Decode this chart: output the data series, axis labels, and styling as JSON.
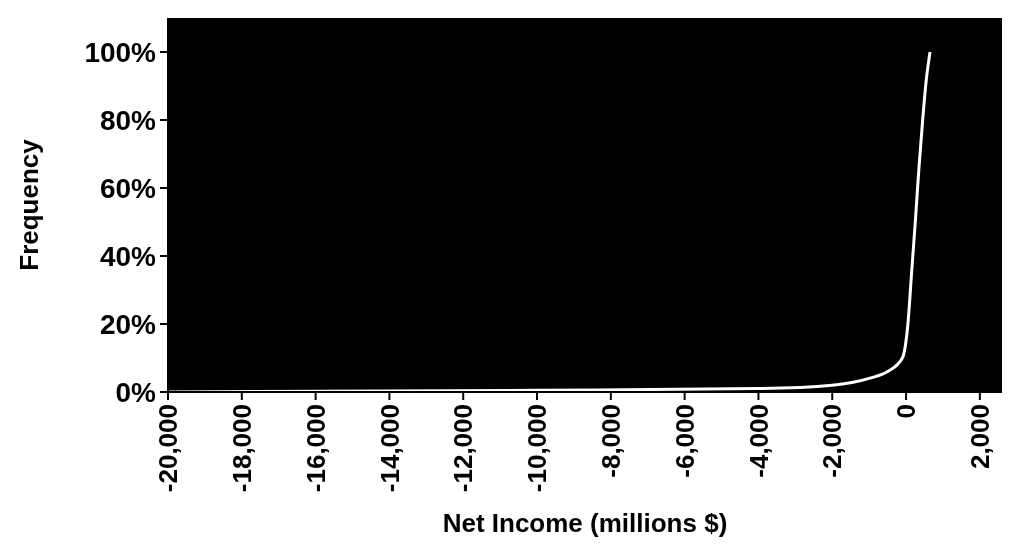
{
  "chart_data": {
    "type": "line",
    "xlabel": "Net Income (millions $)",
    "ylabel": "Frequency",
    "x": [
      -20000,
      -10000,
      -4000,
      -2000,
      -1000,
      -500,
      -100,
      50,
      150,
      250,
      350,
      450,
      550,
      650
    ],
    "series": [
      {
        "color": "#ffffff",
        "values": [
          0,
          0.5,
          1,
          2,
          4,
          6,
          10,
          20,
          35,
          50,
          66,
          80,
          92,
          100
        ]
      }
    ],
    "xlim": [
      -20000,
      2600
    ],
    "ylim": [
      0,
      110
    ],
    "xticks": [
      {
        "value": -20000,
        "label": "-20,000"
      },
      {
        "value": -18000,
        "label": "-18,000"
      },
      {
        "value": -16000,
        "label": "-16,000"
      },
      {
        "value": -14000,
        "label": "-14,000"
      },
      {
        "value": -12000,
        "label": "-12,000"
      },
      {
        "value": -10000,
        "label": "-10,000"
      },
      {
        "value": -8000,
        "label": "-8,000"
      },
      {
        "value": -6000,
        "label": "-6,000"
      },
      {
        "value": -4000,
        "label": "-4,000"
      },
      {
        "value": -2000,
        "label": "-2,000"
      },
      0,
      {
        "value": 2000,
        "label": "2,000"
      }
    ],
    "yticks": [
      {
        "value": 0,
        "label": "0%"
      },
      {
        "value": 20,
        "label": "20%"
      },
      {
        "value": 40,
        "label": "40%"
      },
      {
        "value": 60,
        "label": "60%"
      },
      {
        "value": 80,
        "label": "80%"
      },
      {
        "value": 100,
        "label": "100%"
      }
    ],
    "grid": false,
    "marker": "none",
    "line_style": "solid"
  }
}
